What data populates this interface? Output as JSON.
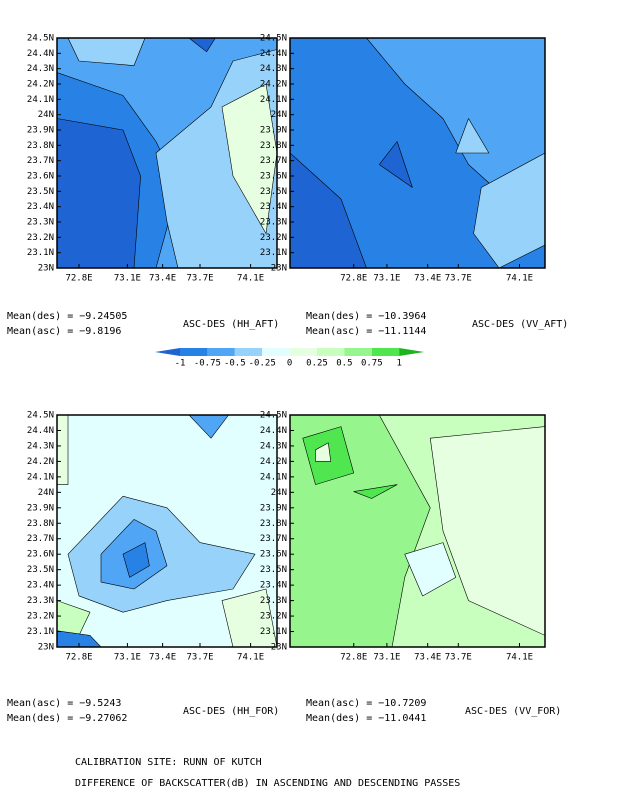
{
  "lat_ticks": [
    "24.5N",
    "24.4N",
    "24.3N",
    "24.2N",
    "24.1N",
    "24N",
    "23.9N",
    "23.8N",
    "23.7N",
    "23.6N",
    "23.5N",
    "23.4N",
    "23.3N",
    "23.2N",
    "23.1N",
    "23N"
  ],
  "lon_ticks": [
    "72.8E",
    "73.1E",
    "73.4E",
    "73.7E",
    "74.1E"
  ],
  "colorbar": {
    "labels": [
      "-1",
      "-0.75",
      "-0.5",
      "-0.25",
      "0",
      "0.25",
      "0.5",
      "0.75",
      "1"
    ],
    "colors": [
      "#1e64d2",
      "#2882e6",
      "#50a5f5",
      "#96d2fa",
      "#e1ffff",
      "#e6ffe1",
      "#c8ffbe",
      "#96f58c",
      "#50e650",
      "#1eb41e"
    ]
  },
  "panels": [
    {
      "title": "ASC-DES (HH_AFT)",
      "mean_lines": [
        "Mean(des) = −9.24505",
        "Mean(asc) = −9.8196"
      ]
    },
    {
      "title": "ASC-DES (VV_AFT)",
      "mean_lines": [
        "Mean(des) = −10.3964",
        "Mean(asc) = −11.1144"
      ]
    },
    {
      "title": "ASC-DES (HH_FOR)",
      "mean_lines": [
        "Mean(asc) = −9.5243",
        "Mean(des) = −9.27062"
      ]
    },
    {
      "title": "ASC-DES (VV_FOR)",
      "mean_lines": [
        "Mean(asc) = −10.7209",
        "Mean(des) = −11.0441"
      ]
    }
  ],
  "captions": [
    "CALIBRATION SITE: RUNN OF KUTCH",
    "DIFFERENCE OF BACKSCATTER(dB) IN ASCENDING AND DESCENDING PASSES"
  ]
}
